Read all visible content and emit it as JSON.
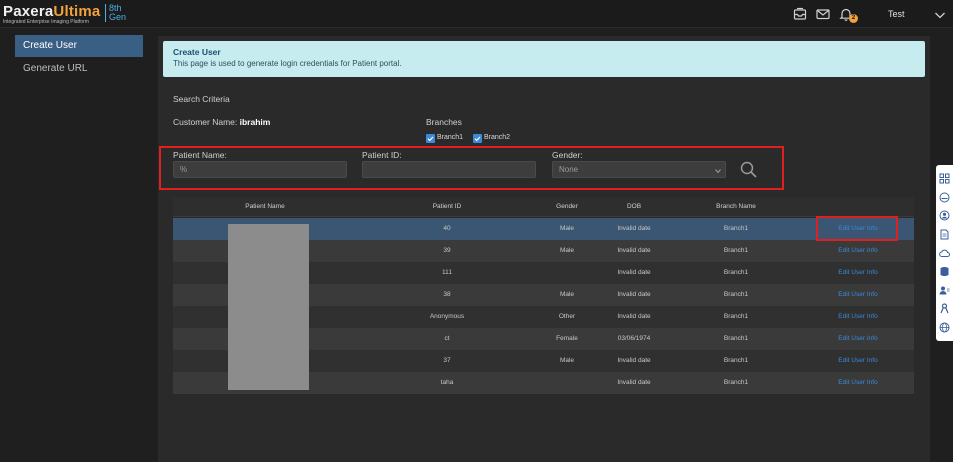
{
  "header": {
    "logo_main": "Paxera",
    "logo_accent": "Ultima",
    "logo_gen": "8th Gen",
    "logo_tagline": "Integrated Enterprise Imaging Platform",
    "icons": [
      "inbox-icon",
      "mail-icon",
      "bell-icon"
    ],
    "notification_count": "2",
    "user_name": "Test"
  },
  "sidebar": {
    "items": [
      {
        "label": "Create User",
        "active": true
      },
      {
        "label": "Generate URL",
        "active": false
      }
    ]
  },
  "info": {
    "title": "Create User",
    "description": "This page is used to generate login credentials for Patient portal."
  },
  "search": {
    "section_title": "Search Criteria",
    "customer_label": "Customer Name:",
    "customer_value": "ibrahim",
    "branches_label": "Branches",
    "branches": [
      {
        "label": "Branch1",
        "checked": true
      },
      {
        "label": "Branch2",
        "checked": true
      }
    ],
    "patient_name_label": "Patient Name:",
    "patient_name_value": "%",
    "patient_id_label": "Patient ID:",
    "patient_id_value": "",
    "gender_label": "Gender:",
    "gender_value": "None"
  },
  "table": {
    "headers": [
      "Patient Name",
      "Patient ID",
      "Gender",
      "DOB",
      "Branch Name",
      ""
    ],
    "rows": [
      {
        "name": "",
        "id": "40",
        "gender": "Male",
        "dob": "Invalid date",
        "branch": "Branch1",
        "action": "Edit User Info"
      },
      {
        "name": "",
        "id": "39",
        "gender": "Male",
        "dob": "Invalid date",
        "branch": "Branch1",
        "action": "Edit User Info"
      },
      {
        "name": "",
        "id": "111",
        "gender": "",
        "dob": "Invalid date",
        "branch": "Branch1",
        "action": "Edit User Info"
      },
      {
        "name": "",
        "id": "38",
        "gender": "Male",
        "dob": "Invalid date",
        "branch": "Branch1",
        "action": "Edit User Info"
      },
      {
        "name": "",
        "id": "Anonymous",
        "gender": "Other",
        "dob": "Invalid date",
        "branch": "Branch1",
        "action": "Edit User Info"
      },
      {
        "name": "",
        "id": "ct",
        "gender": "Female",
        "dob": "03/06/1974",
        "branch": "Branch1",
        "action": "Edit User Info"
      },
      {
        "name": "",
        "id": "37",
        "gender": "Male",
        "dob": "Invalid date",
        "branch": "Branch1",
        "action": "Edit User Info"
      },
      {
        "name": "",
        "id": "taha",
        "gender": "",
        "dob": "Invalid date",
        "branch": "Branch1",
        "action": "Edit User Info"
      }
    ]
  },
  "right_rail": {
    "icons": [
      "grid-icon",
      "dashboard-icon",
      "user-circle-icon",
      "document-icon",
      "cloud-icon",
      "database-icon",
      "users-icon",
      "ribbon-icon",
      "globe-icon"
    ]
  },
  "colors": {
    "accent_orange": "#f0a33a",
    "accent_blue": "#3b8ad9",
    "highlight_red": "#e02020",
    "info_bg": "#c7ecef"
  }
}
